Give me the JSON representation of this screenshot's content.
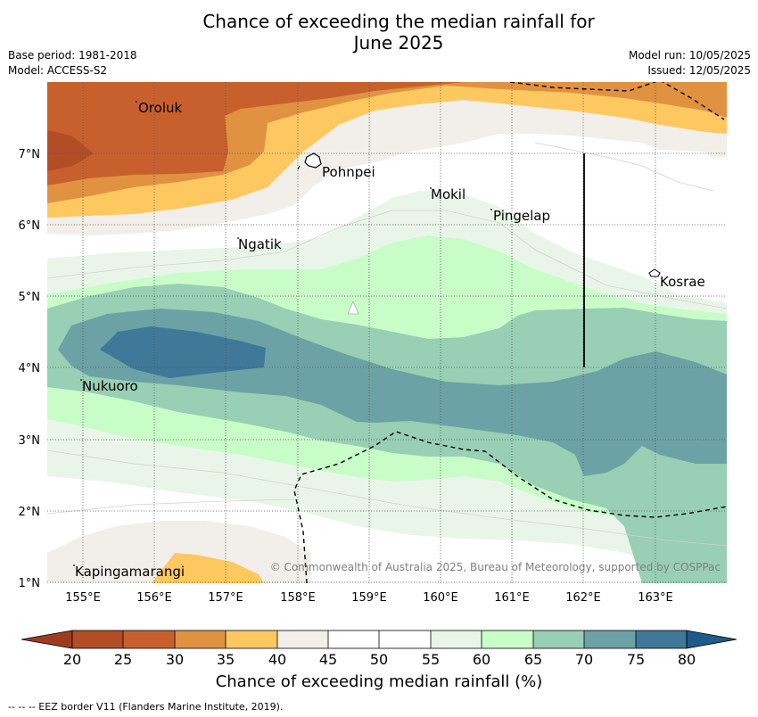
{
  "title_line1": "Chance of exceeding the median rainfall for",
  "title_line2": "June 2025",
  "base_period": "Base period: 1981-2018",
  "model": "Model: ACCESS-S2",
  "model_run": "Model run: 10/05/2025",
  "issued": "Issued: 12/05/2025",
  "copyright": "© Commonwealth of Australia 2025, Bureau of Meteorology, supported by COSPPac",
  "colorbar_label": "Chance of exceeding median rainfall (%)",
  "footer": "--  --  -- EEZ border V11 (Flanders Marine Institute, 2019).",
  "lon_labels": [
    "155°E",
    "156°E",
    "157°E",
    "158°E",
    "159°E",
    "160°E",
    "161°E",
    "162°E",
    "163°E"
  ],
  "lat_labels": [
    "7°N",
    "6°N",
    "5°N",
    "4°N",
    "3°N",
    "2°N",
    "1°N"
  ],
  "places": {
    "oroluk": "Oroluk",
    "pohnpei": "Pohnpei",
    "mokil": "Mokil",
    "pingelap": "Pingelap",
    "ngatik": "Ngatik",
    "kosrae": "Kosrae",
    "nukuoro": "Nukuoro",
    "kapingamarangi": "Kapingamarangi"
  },
  "colorbar": {
    "ticks": [
      "20",
      "25",
      "30",
      "35",
      "40",
      "45",
      "50",
      "55",
      "60",
      "65",
      "70",
      "75",
      "80"
    ],
    "colors": {
      "below20": "#9e3d1e",
      "c20_25": "#b34d26",
      "c25_30": "#c8602e",
      "c30_35": "#e09241",
      "c35_40": "#fec861",
      "c40_45": "#f2eeea",
      "c45_55": "#ffffff",
      "c55_60": "#eaf5ea",
      "c60_65": "#c9fdc8",
      "c65_70": "#98cfb5",
      "c70_75": "#6ca2a5",
      "c75_80": "#3f7898",
      "above80": "#1e5a8c"
    }
  }
}
